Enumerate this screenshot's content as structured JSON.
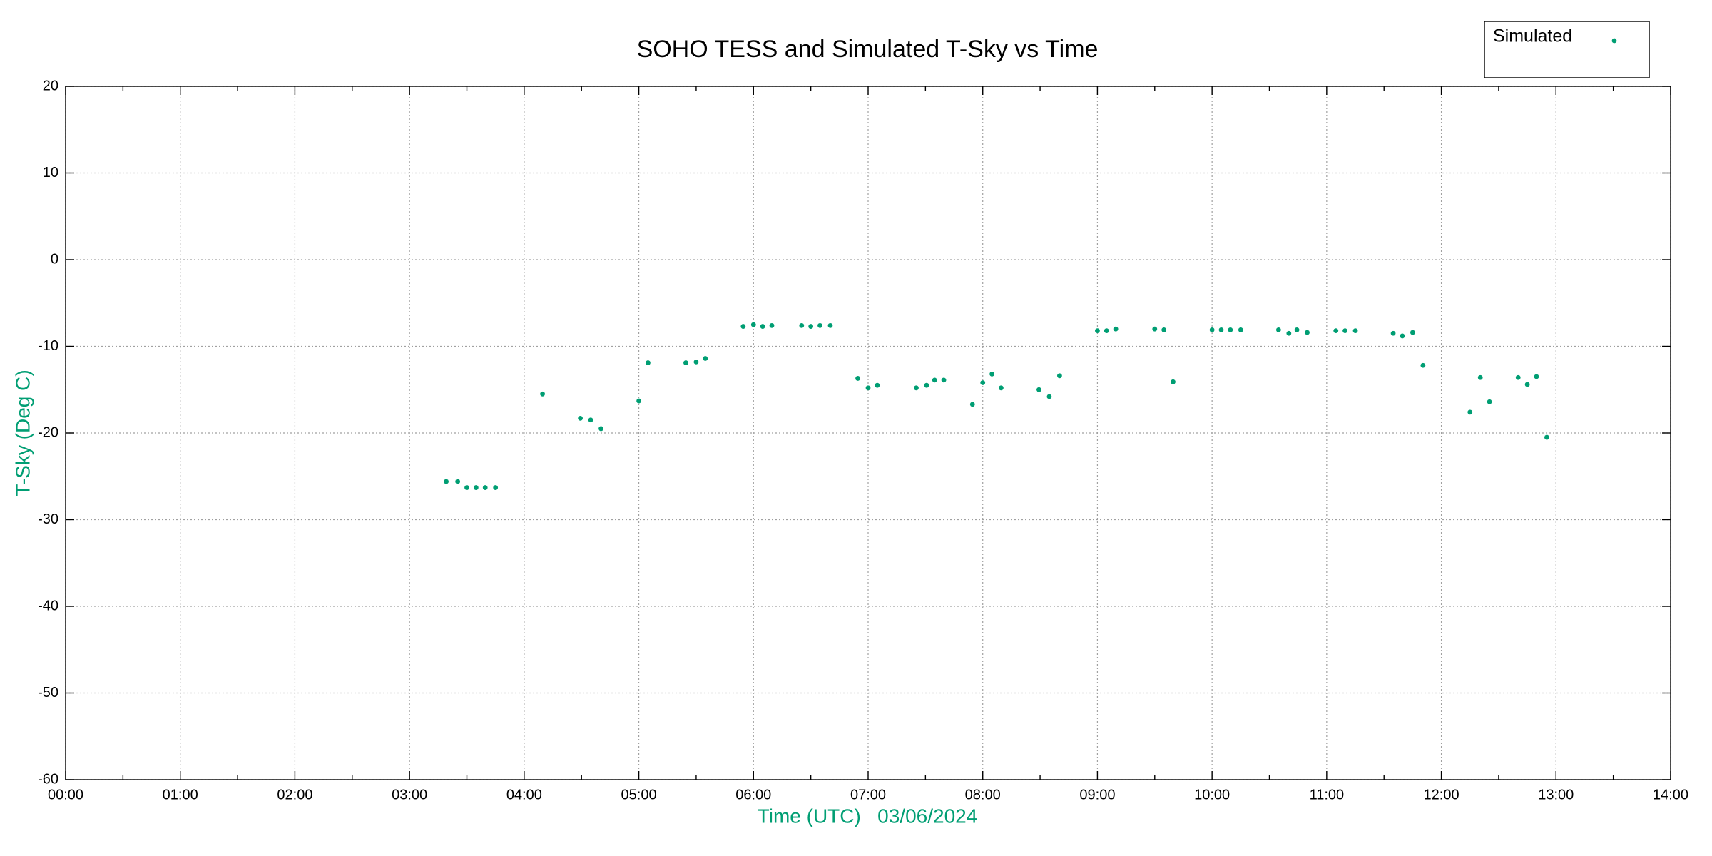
{
  "chart_data": {
    "type": "scatter",
    "title": "SOHO TESS and Simulated T-Sky vs Time",
    "x_label": "Time (UTC)   03/06/2024",
    "y_label": "T-Sky (Deg C)",
    "xlim": [
      0,
      14
    ],
    "xticks": [
      {
        "value": 0,
        "label": "00:00"
      },
      {
        "value": 1,
        "label": "01:00"
      },
      {
        "value": 2,
        "label": "02:00"
      },
      {
        "value": 3,
        "label": "03:00"
      },
      {
        "value": 4,
        "label": "04:00"
      },
      {
        "value": 5,
        "label": "05:00"
      },
      {
        "value": 6,
        "label": "06:00"
      },
      {
        "value": 7,
        "label": "07:00"
      },
      {
        "value": 8,
        "label": "08:00"
      },
      {
        "value": 9,
        "label": "09:00"
      },
      {
        "value": 10,
        "label": "10:00"
      },
      {
        "value": 11,
        "label": "11:00"
      },
      {
        "value": 12,
        "label": "12:00"
      },
      {
        "value": 13,
        "label": "13:00"
      },
      {
        "value": 14,
        "label": "14:00"
      }
    ],
    "ylim": [
      -60,
      20
    ],
    "yticks": [
      -60,
      -50,
      -40,
      -30,
      -20,
      -10,
      0,
      10,
      20
    ],
    "grid": true,
    "legend_position": "top-right",
    "series": [
      {
        "name": "Simulated",
        "color": "#009e73",
        "x": [
          3.32,
          3.42,
          3.5,
          3.58,
          3.66,
          3.75,
          4.16,
          4.49,
          4.58,
          4.67,
          5.0,
          5.08,
          5.41,
          5.5,
          5.58,
          5.91,
          6.0,
          6.08,
          6.16,
          6.42,
          6.5,
          6.58,
          6.67,
          6.91,
          7.0,
          7.08,
          7.42,
          7.51,
          7.58,
          7.66,
          7.91,
          8.0,
          8.08,
          8.16,
          8.49,
          8.58,
          8.67,
          9.0,
          9.08,
          9.16,
          9.5,
          9.58,
          9.66,
          10.0,
          10.08,
          10.16,
          10.25,
          10.58,
          10.67,
          10.74,
          10.83,
          11.08,
          11.16,
          11.25,
          11.58,
          11.66,
          11.75,
          11.84,
          12.25,
          12.34,
          12.42,
          12.67,
          12.75,
          12.83,
          12.92
        ],
        "values": [
          -25.6,
          -25.6,
          -26.3,
          -26.3,
          -26.3,
          -26.3,
          -15.5,
          -18.3,
          -18.5,
          -19.5,
          -16.3,
          -11.9,
          -11.9,
          -11.8,
          -11.4,
          -7.7,
          -7.5,
          -7.7,
          -7.6,
          -7.6,
          -7.7,
          -7.6,
          -7.6,
          -13.7,
          -14.8,
          -14.5,
          -14.8,
          -14.5,
          -13.9,
          -13.9,
          -16.7,
          -14.2,
          -13.2,
          -14.8,
          -15.0,
          -15.8,
          -13.4,
          -8.2,
          -8.2,
          -8.0,
          -8.0,
          -8.1,
          -14.1,
          -8.1,
          -8.1,
          -8.1,
          -8.1,
          -8.1,
          -8.5,
          -8.1,
          -8.4,
          -8.2,
          -8.2,
          -8.2,
          -8.5,
          -8.8,
          -8.4,
          -12.2,
          -17.6,
          -13.6,
          -16.4,
          -13.6,
          -14.4,
          -13.5,
          -20.5
        ]
      }
    ]
  }
}
